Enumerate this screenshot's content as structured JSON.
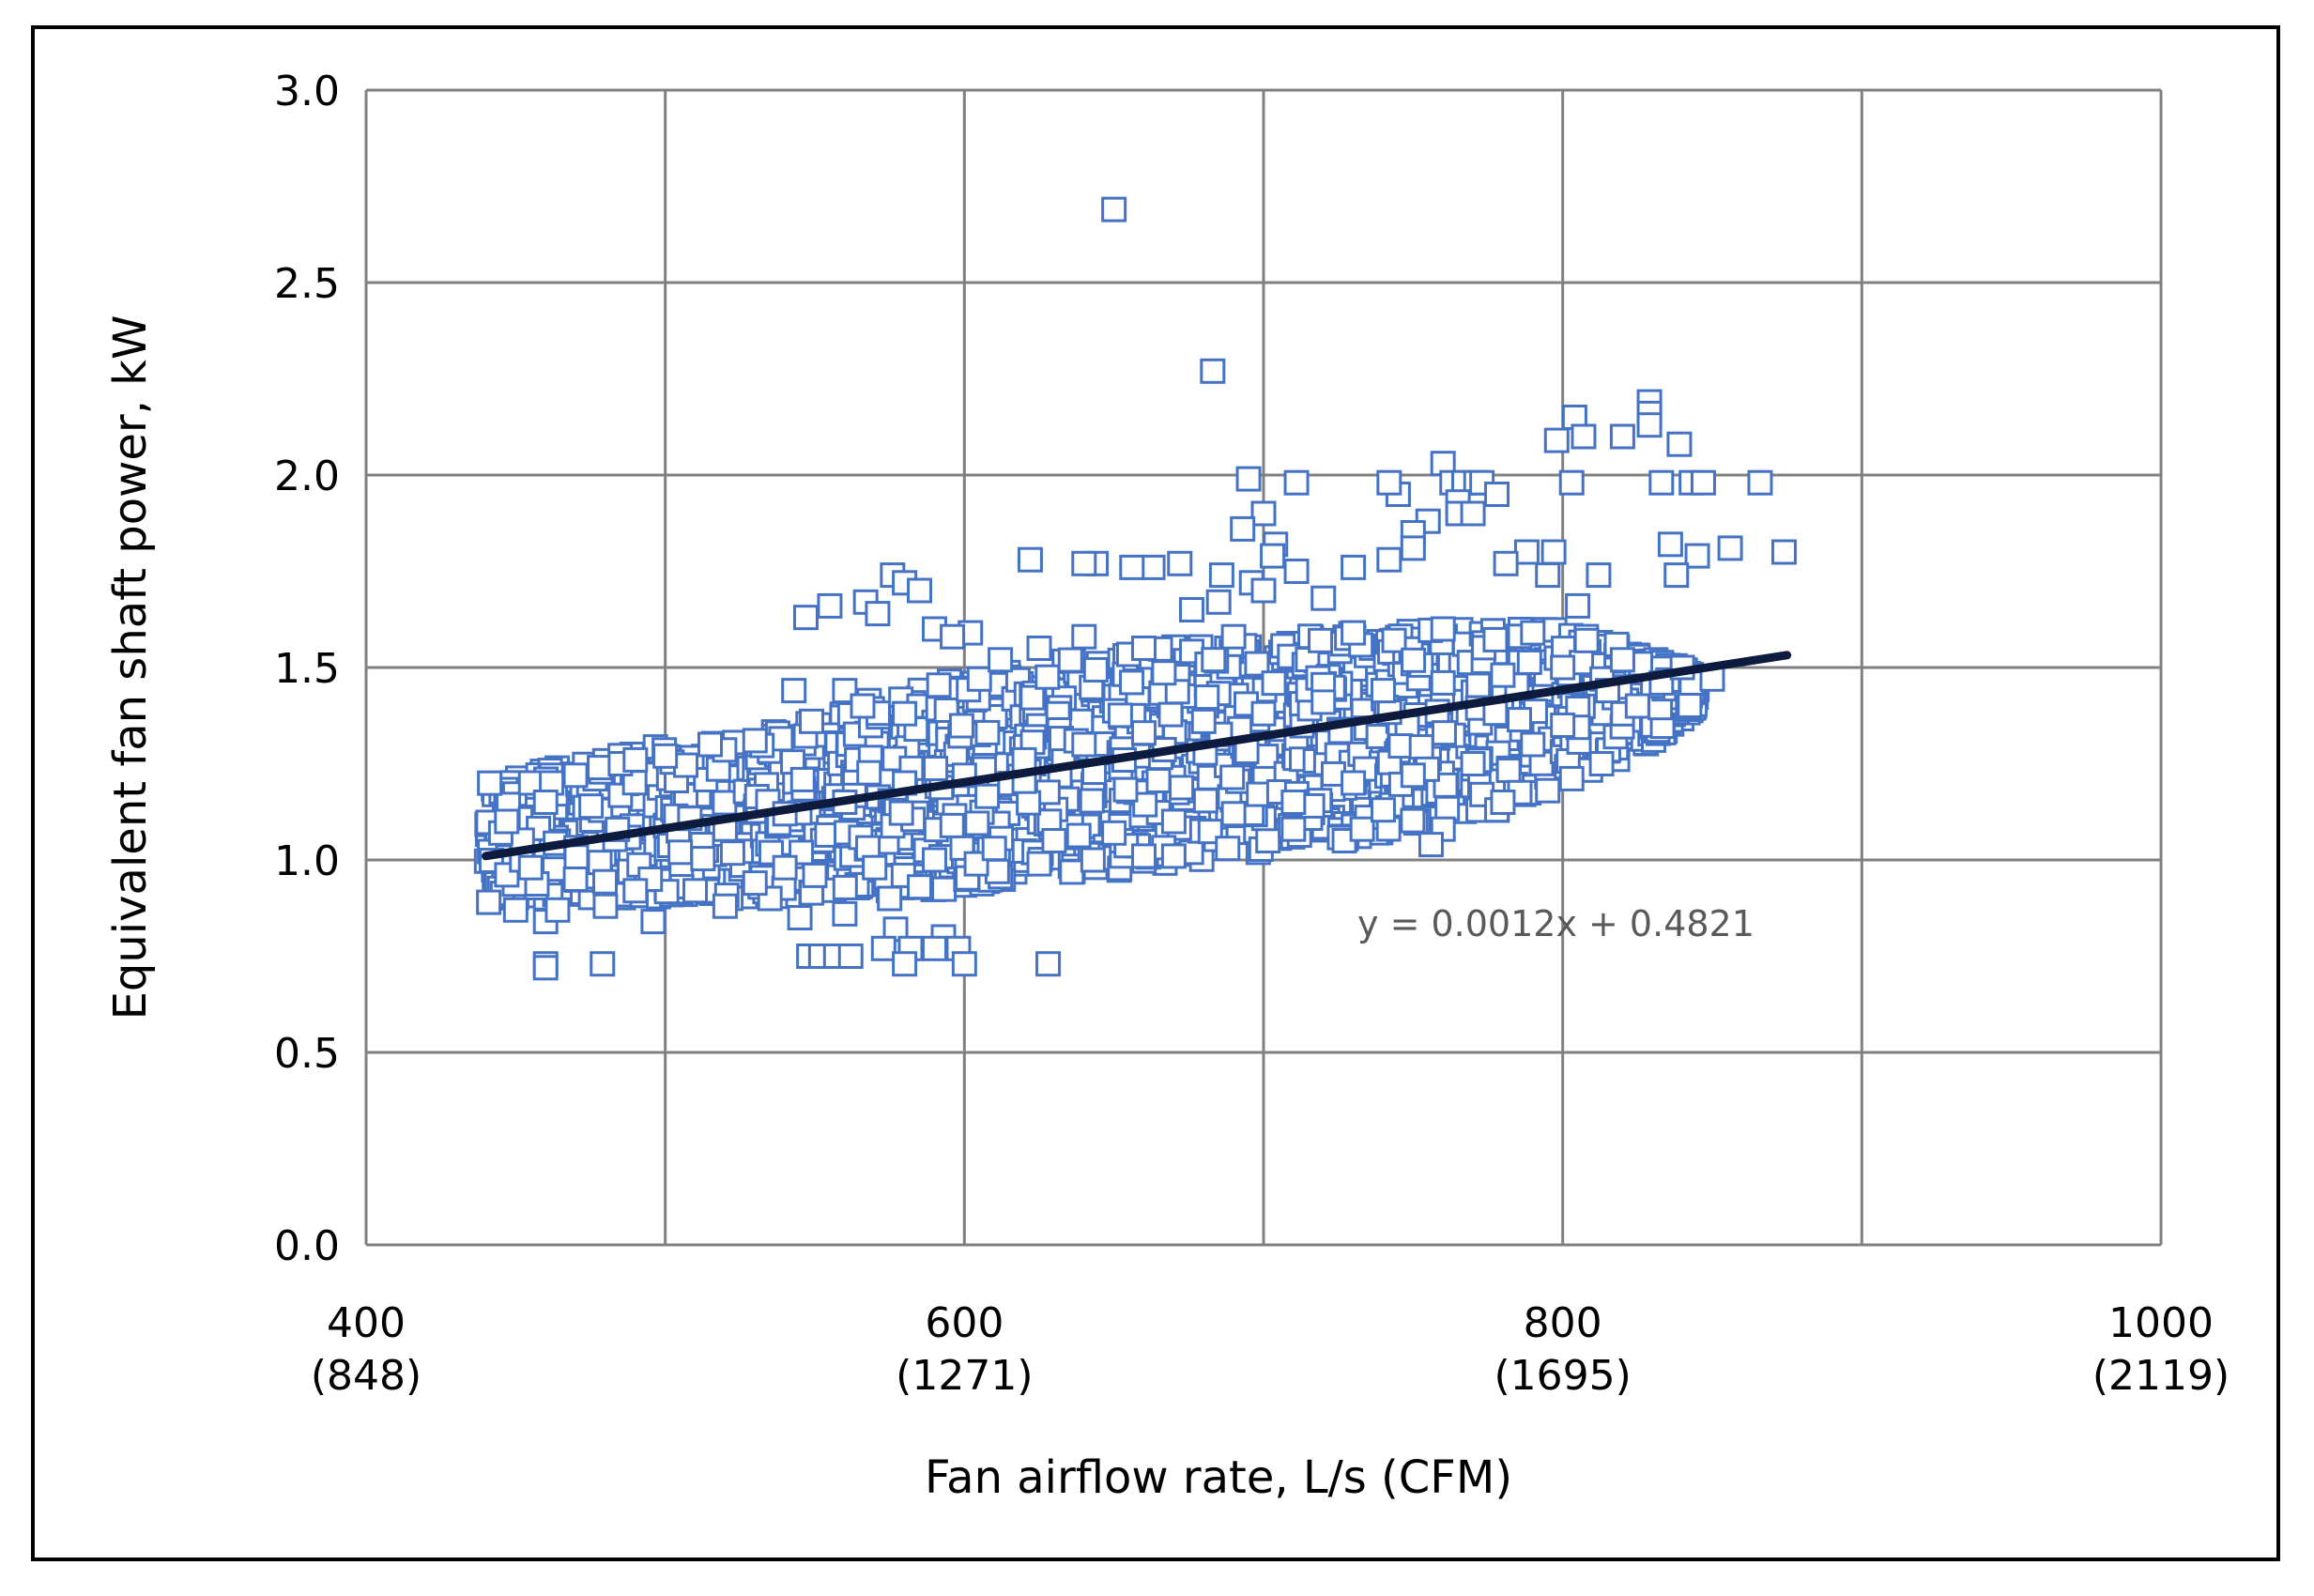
{
  "chart_data": {
    "type": "scatter",
    "title": "",
    "xlabel": "Fan airflow rate, L/s (CFM)",
    "ylabel": "Equivalent fan shaft power, kW",
    "xlim": [
      400,
      1000
    ],
    "ylim": [
      0.0,
      3.0
    ],
    "x_gridlines": [
      400,
      500,
      600,
      700,
      800,
      900,
      1000
    ],
    "y_ticks": [
      "0.0",
      "0.5",
      "1.0",
      "1.5",
      "2.0",
      "2.5",
      "3.0"
    ],
    "x_ticks": [
      {
        "value": 400,
        "line1": "400",
        "line2": "(848)"
      },
      {
        "value": 600,
        "line1": "600",
        "line2": "(1271)"
      },
      {
        "value": 800,
        "line1": "800",
        "line2": "(1695)"
      },
      {
        "value": 1000,
        "line1": "1000",
        "line2": "(2119)"
      }
    ],
    "grid": true,
    "legend": "none",
    "marker_color": "#4472C4",
    "trend_color": "#0D1B3E",
    "trendline": {
      "slope": 0.0012,
      "intercept": 0.4821,
      "x_range": [
        440,
        875
      ],
      "equation": "y = 0.0012x + 0.4821"
    },
    "dense_band": [
      [
        440,
        0.9,
        1.2
      ],
      [
        470,
        0.9,
        1.25
      ],
      [
        500,
        0.9,
        1.3
      ],
      [
        530,
        0.9,
        1.33
      ],
      [
        560,
        0.92,
        1.4
      ],
      [
        590,
        0.92,
        1.46
      ],
      [
        620,
        0.95,
        1.5
      ],
      [
        650,
        0.97,
        1.54
      ],
      [
        680,
        1.0,
        1.56
      ],
      [
        710,
        1.03,
        1.58
      ],
      [
        740,
        1.07,
        1.6
      ],
      [
        770,
        1.1,
        1.6
      ],
      [
        800,
        1.2,
        1.6
      ],
      [
        830,
        1.3,
        1.53
      ],
      [
        845,
        1.4,
        1.48
      ]
    ],
    "points": [
      [
        650,
        2.69
      ],
      [
        683,
        2.27
      ],
      [
        829,
        2.19
      ],
      [
        829,
        2.16
      ],
      [
        829,
        2.13
      ],
      [
        804,
        2.15
      ],
      [
        807,
        2.1
      ],
      [
        820,
        2.1
      ],
      [
        839,
        2.08
      ],
      [
        798,
        2.09
      ],
      [
        760,
        2.03
      ],
      [
        866,
        1.98
      ],
      [
        843,
        1.98
      ],
      [
        847,
        1.98
      ],
      [
        833,
        1.98
      ],
      [
        803,
        1.98
      ],
      [
        695,
        1.99
      ],
      [
        711,
        1.98
      ],
      [
        763,
        1.98
      ],
      [
        767,
        1.98
      ],
      [
        771,
        1.98
      ],
      [
        773,
        1.98
      ],
      [
        745,
        1.95
      ],
      [
        742,
        1.98
      ],
      [
        778,
        1.95
      ],
      [
        765,
        1.93
      ],
      [
        765,
        1.9
      ],
      [
        755,
        1.88
      ],
      [
        750,
        1.85
      ],
      [
        770,
        1.9
      ],
      [
        700,
        1.9
      ],
      [
        693,
        1.86
      ],
      [
        704,
        1.82
      ],
      [
        750,
        1.81
      ],
      [
        788,
        1.8
      ],
      [
        797,
        1.8
      ],
      [
        874,
        1.8
      ],
      [
        856,
        1.81
      ],
      [
        845,
        1.79
      ],
      [
        836,
        1.82
      ],
      [
        812,
        1.74
      ],
      [
        838,
        1.74
      ],
      [
        672,
        1.77
      ],
      [
        663,
        1.76
      ],
      [
        656,
        1.76
      ],
      [
        644,
        1.77
      ],
      [
        640,
        1.77
      ],
      [
        622,
        1.78
      ],
      [
        711,
        1.75
      ],
      [
        686,
        1.74
      ],
      [
        696,
        1.72
      ],
      [
        730,
        1.76
      ],
      [
        781,
        1.77
      ],
      [
        703,
        1.79
      ],
      [
        742,
        1.78
      ],
      [
        576,
        1.74
      ],
      [
        580,
        1.72
      ],
      [
        585,
        1.7
      ],
      [
        567,
        1.67
      ],
      [
        555,
        1.66
      ],
      [
        571,
        1.64
      ],
      [
        547,
        1.63
      ],
      [
        602,
        1.59
      ],
      [
        590,
        1.6
      ],
      [
        596,
        1.58
      ],
      [
        676,
        1.65
      ],
      [
        685,
        1.67
      ],
      [
        700,
        1.7
      ],
      [
        720,
        1.68
      ],
      [
        795,
        1.74
      ],
      [
        805,
        1.66
      ],
      [
        826,
        1.51
      ],
      [
        833,
        1.46
      ],
      [
        813,
        1.25
      ],
      [
        795,
        1.18
      ],
      [
        773,
        1.17
      ],
      [
        778,
        1.13
      ],
      [
        780,
        1.15
      ],
      [
        760,
        1.08
      ],
      [
        756,
        1.04
      ],
      [
        727,
        1.05
      ],
      [
        733,
        1.08
      ],
      [
        740,
        1.13
      ],
      [
        710,
        1.08
      ],
      [
        688,
        1.03
      ],
      [
        670,
        1.01
      ],
      [
        660,
        1.01
      ],
      [
        643,
        1.0
      ],
      [
        625,
        0.99
      ],
      [
        611,
        0.97
      ],
      [
        604,
        0.99
      ],
      [
        585,
        0.93
      ],
      [
        575,
        0.9
      ],
      [
        560,
        0.86
      ],
      [
        545,
        0.85
      ],
      [
        577,
        0.82
      ],
      [
        593,
        0.8
      ],
      [
        582,
        0.77
      ],
      [
        573,
        0.77
      ],
      [
        590,
        0.77
      ],
      [
        598,
        0.77
      ],
      [
        548,
        0.75
      ],
      [
        552,
        0.75
      ],
      [
        557,
        0.75
      ],
      [
        562,
        0.75
      ],
      [
        580,
        0.73
      ],
      [
        600,
        0.73
      ],
      [
        628,
        0.73
      ],
      [
        460,
        0.73
      ],
      [
        479,
        0.73
      ],
      [
        460,
        0.72
      ],
      [
        460,
        0.84
      ],
      [
        464,
        0.87
      ],
      [
        450,
        0.87
      ],
      [
        441,
        0.89
      ],
      [
        452,
        1.0
      ],
      [
        445,
        1.07
      ],
      [
        447,
        1.1
      ],
      [
        455,
        1.2
      ],
      [
        462,
        1.2
      ],
      [
        460,
        1.15
      ],
      [
        470,
        1.22
      ],
      [
        478,
        1.24
      ],
      [
        485,
        1.25
      ],
      [
        490,
        1.26
      ],
      [
        500,
        1.27
      ],
      [
        515,
        1.3
      ],
      [
        530,
        1.31
      ],
      [
        543,
        1.44
      ],
      [
        560,
        1.44
      ],
      [
        566,
        1.4
      ],
      [
        580,
        1.38
      ],
      [
        605,
        1.47
      ],
      [
        612,
        1.52
      ],
      [
        625,
        1.55
      ],
      [
        640,
        1.58
      ],
      [
        660,
        1.55
      ],
      [
        690,
        1.58
      ],
      [
        719,
        1.57
      ],
      [
        730,
        1.59
      ],
      [
        760,
        1.6
      ],
      [
        790,
        1.59
      ],
      [
        808,
        1.57
      ],
      [
        818,
        1.56
      ],
      [
        480,
        0.88
      ],
      [
        496,
        0.84
      ],
      [
        520,
        0.88
      ],
      [
        535,
        0.9
      ],
      [
        495,
        0.95
      ],
      [
        540,
        0.98
      ],
      [
        505,
        1.02
      ],
      [
        520,
        1.08
      ],
      [
        540,
        1.12
      ],
      [
        560,
        1.15
      ],
      [
        580,
        1.2
      ],
      [
        600,
        1.22
      ],
      [
        620,
        1.26
      ],
      [
        640,
        1.3
      ],
      [
        660,
        1.33
      ],
      [
        680,
        1.36
      ],
      [
        700,
        1.38
      ],
      [
        720,
        1.41
      ],
      [
        740,
        1.44
      ],
      [
        760,
        1.46
      ],
      [
        780,
        1.48
      ],
      [
        800,
        1.5
      ],
      [
        820,
        1.52
      ],
      [
        840,
        1.5
      ],
      [
        850,
        1.47
      ],
      [
        815,
        1.44
      ],
      [
        825,
        1.4
      ],
      [
        800,
        1.35
      ],
      [
        790,
        1.3
      ],
      [
        770,
        1.25
      ],
      [
        750,
        1.22
      ],
      [
        730,
        1.2
      ],
      [
        710,
        1.15
      ],
      [
        690,
        1.12
      ],
      [
        670,
        1.1
      ],
      [
        650,
        1.07
      ],
      [
        630,
        1.05
      ],
      [
        610,
        1.03
      ],
      [
        590,
        1.0
      ],
      [
        570,
        0.98
      ],
      [
        550,
        0.96
      ],
      [
        530,
        0.94
      ],
      [
        510,
        0.92
      ],
      [
        490,
        0.92
      ],
      [
        470,
        0.95
      ],
      [
        455,
        0.98
      ]
    ]
  }
}
